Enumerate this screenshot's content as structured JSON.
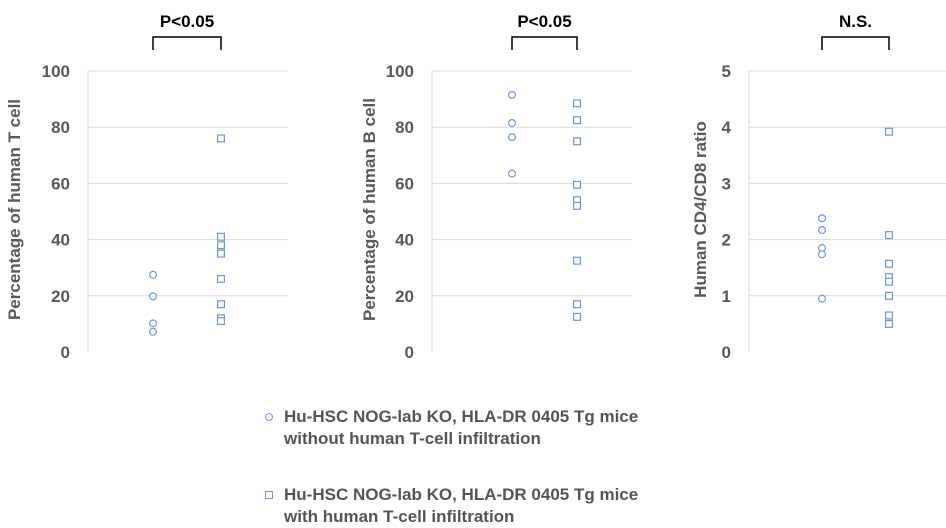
{
  "colors": {
    "marker": "#6f97d6",
    "axis_text": "#595959",
    "grid": "#d9d9d9",
    "bracket": "#000000"
  },
  "legend": [
    {
      "marker": "circle",
      "line1": "Hu-HSC NOG-lab KO, HLA-DR 0405 Tg mice",
      "line2": "without human T-cell infiltration"
    },
    {
      "marker": "square",
      "line1": "Hu-HSC NOG-lab KO, HLA-DR 0405 Tg mice",
      "line2": "with human T-cell infiltration"
    }
  ],
  "chart_data": [
    {
      "type": "scatter",
      "ylabel": "Percentage of human T cell",
      "ylim": [
        0,
        100
      ],
      "yticks": [
        "0",
        "20",
        "40",
        "60",
        "80",
        "100"
      ],
      "significance": "P<0.05",
      "series": [
        {
          "marker": "circle",
          "values": [
            27.5,
            19.8,
            10.2,
            7.2
          ]
        },
        {
          "marker": "square",
          "values": [
            76,
            41,
            38,
            35,
            26,
            17,
            12,
            11
          ]
        }
      ]
    },
    {
      "type": "scatter",
      "ylabel": "Percentage of human B cell",
      "ylim": [
        0,
        100
      ],
      "yticks": [
        "0",
        "20",
        "40",
        "60",
        "80",
        "100"
      ],
      "significance": "P<0.05",
      "series": [
        {
          "marker": "circle",
          "values": [
            91.5,
            81.5,
            76.5,
            63.5
          ]
        },
        {
          "marker": "square",
          "values": [
            88.5,
            82.5,
            75,
            59.5,
            54,
            52,
            32.5,
            17,
            12.5
          ]
        }
      ]
    },
    {
      "type": "scatter",
      "ylabel": "Human CD4/CD8 ratio",
      "ylim": [
        0,
        5
      ],
      "yticks": [
        "0",
        "1",
        "2",
        "3",
        "4",
        "5"
      ],
      "significance": "N.S.",
      "series": [
        {
          "marker": "circle",
          "values": [
            2.38,
            2.17,
            1.85,
            1.74,
            0.95
          ]
        },
        {
          "marker": "square",
          "values": [
            3.92,
            2.08,
            1.57,
            1.33,
            1.25,
            1.0,
            0.65,
            0.5
          ]
        }
      ]
    }
  ]
}
